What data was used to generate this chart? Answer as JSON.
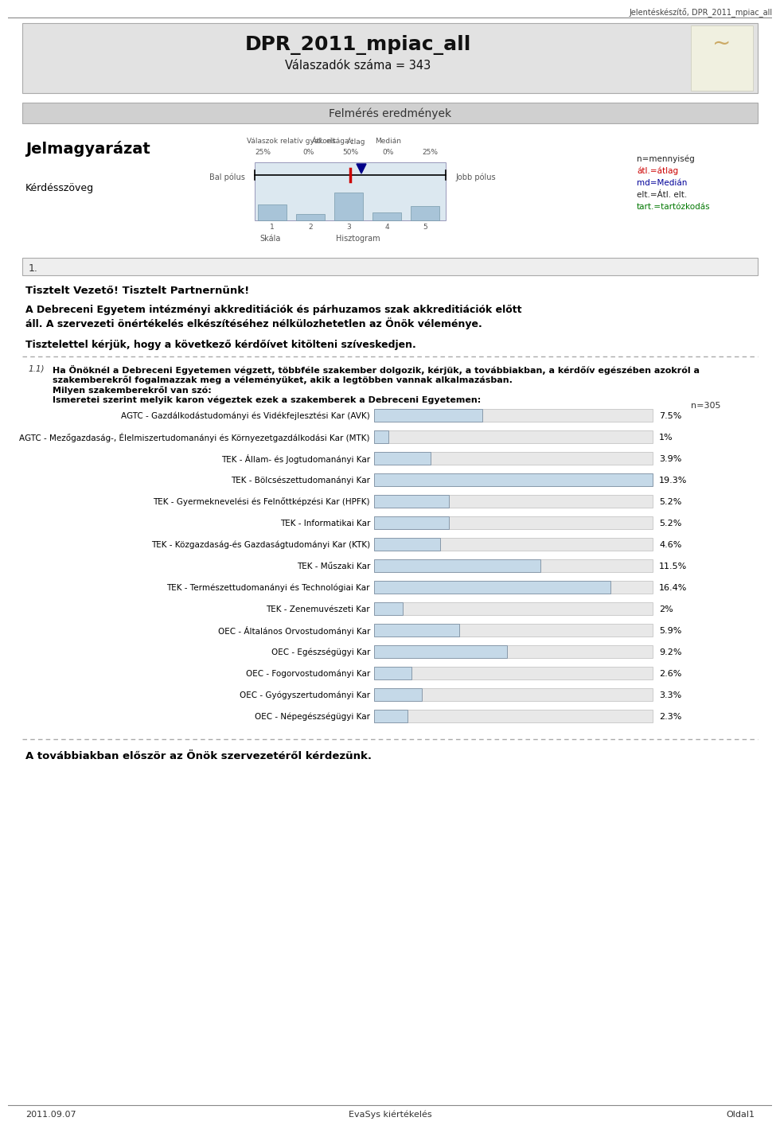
{
  "title": "DPR_2011_mpiac_all",
  "subtitle": "Válaszadók száma = 343",
  "header_label": "Jelentéskészítő, DPR_2011_mpiac_all",
  "section_title": "Felmérés eredmények",
  "legend_title": "Jelmagyarázat",
  "legend_subtitle": "Kérdésszöveg",
  "legend_items": [
    "n=mennyiség",
    "átl.=átlag",
    "md=Medián",
    "elt.=Átl. elt.",
    "tart.=tartózkodás"
  ],
  "legend_colors": [
    "#222222",
    "#cc0000",
    "#000099",
    "#222222",
    "#007700"
  ],
  "question_number": "1.",
  "question_intro1": "Tisztelt Vezető! Tisztelt Partnernünk!",
  "question_intro2a": "A Debreceni Egyetem intézményi akkreditiációk és párhuzamos szak akkreditiációk előtt",
  "question_intro2b": "áll. A szervezeti önértékelés elkészítéséhez nélkülozhetetlen az Önök véleménye.",
  "question_intro3": "Tisztelettel kérjük, hogy a következő kérdőívet kitölteni szíveskedjen.",
  "question_label": "1.1)",
  "question_text1": "Ha Önöknél a Debreceni Egyetemen végzett, többféle szakember dolgozik, kérjük, a továbbiakban, a kérdőív egészében azokról a",
  "question_text2": "szakemberekről fogalmazzak meg a véleményüket, akik a legtöbben vannak alkalmazásban.",
  "question_text3": "Milyen szakemberekről van szó:",
  "question_text4": "Ismeretei szerint melyik karon végeztek ezek a szakemberek a Debreceni Egyetemen:",
  "n_label": "n=305",
  "categories": [
    "AGTC - Gazdálkodástudományi és Vidékfejlesztési Kar (AVK)",
    "AGTC - Mezőgazdaság-, Élelmiszertudomanányi és Környezetgazdálkodási Kar (MTK)",
    "TEK - Állam- és Jogtudomanányi Kar",
    "TEK - Bölcsészettudomanányi Kar",
    "TEK - Gyermeknevelési és Felnőttképzési Kar (HPFK)",
    "TEK - Informatikai Kar",
    "TEK - Közgazdaság-és Gazdaságtudományi Kar (KTK)",
    "TEK - Műszaki Kar",
    "TEK - Természettudomanányi és Technológiai Kar",
    "TEK - Zenemuvészeti Kar",
    "OEC - Általános Orvostudományi Kar",
    "OEC - Egészségügyi Kar",
    "OEC - Fogorvostudományi Kar",
    "OEC - Gyógyszertudományi Kar",
    "OEC - Népegészségügyi Kar"
  ],
  "values": [
    7.5,
    1.0,
    3.9,
    19.3,
    5.2,
    5.2,
    4.6,
    11.5,
    16.4,
    2.0,
    5.9,
    9.2,
    2.6,
    3.3,
    2.3
  ],
  "value_labels": [
    "7.5%",
    "1%",
    "3.9%",
    "19.3%",
    "5.2%",
    "5.2%",
    "4.6%",
    "11.5%",
    "16.4%",
    "2%",
    "5.9%",
    "9.2%",
    "2.6%",
    "3.3%",
    "2.3%"
  ],
  "bar_color": "#c5d9e8",
  "bar_edge_color": "#8899aa",
  "bg_track_color": "#e8e8e8",
  "bg_color": "#ffffff",
  "title_bg": "#e2e2e2",
  "section_bg": "#d0d0d0",
  "number_bg": "#eeeeee",
  "footer_text_left": "2011.09.07",
  "footer_text_center": "EvaSys kiértékelés",
  "footer_text_right": "Oldal1",
  "conclusion_text": "A továbbiakban először az Önök szervezetéről kérdezünk."
}
